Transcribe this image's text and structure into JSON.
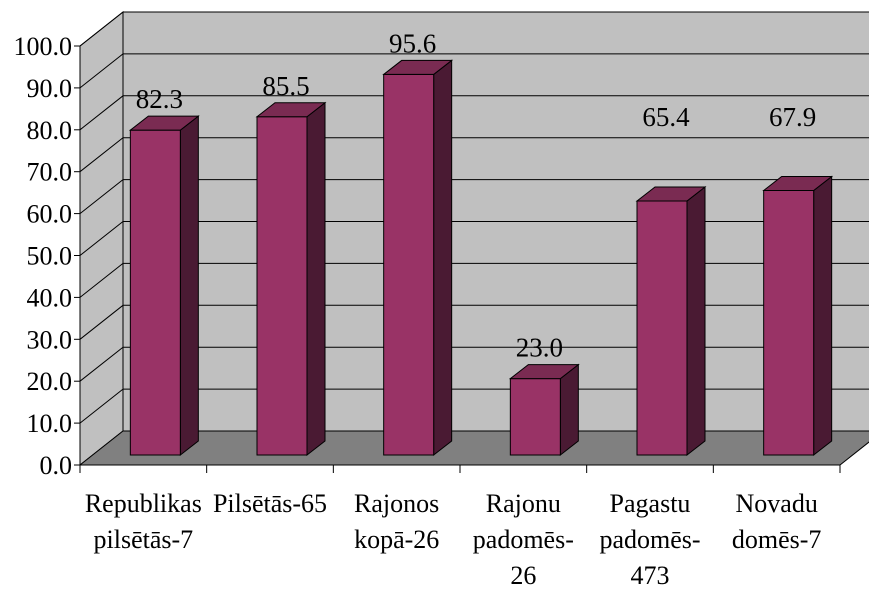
{
  "chart_data": {
    "type": "bar",
    "categories": [
      [
        "Republikas",
        "pilsētās-7"
      ],
      [
        "Pilsētās-65"
      ],
      [
        "Rajonos",
        "kopā-26"
      ],
      [
        "Rajonu",
        "padomēs-",
        "26"
      ],
      [
        "Pagastu",
        "padomēs-",
        "473"
      ],
      [
        "Novadu",
        "domēs-7"
      ]
    ],
    "values": [
      82.3,
      85.5,
      95.6,
      23.0,
      65.4,
      67.9
    ],
    "value_labels": [
      "82.3",
      "85.5",
      "95.6",
      "23.0",
      "65.4",
      "67.9"
    ],
    "ylim": [
      0,
      100
    ],
    "yticks": [
      "0.0",
      "10.0",
      "20.0",
      "30.0",
      "40.0",
      "50.0",
      "60.0",
      "70.0",
      "80.0",
      "90.0",
      "100.0"
    ],
    "grid": true,
    "legend": "none",
    "colors": {
      "bar_front": "#993366",
      "bar_top": "#7a2b52",
      "bar_side": "#4a1a33",
      "wall": "#c0c0c0",
      "floor": "#808080"
    }
  }
}
